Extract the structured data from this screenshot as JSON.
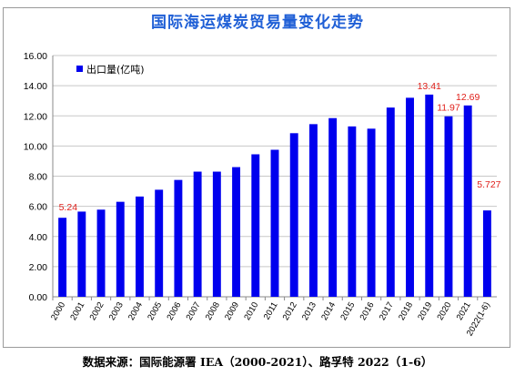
{
  "title": "国际海运煤炭贸易量变化走势",
  "source_note": "数据来源：国际能源署 IEA（2000-2021）、路孚特 2022（1-6）",
  "colors": {
    "bar": "#0000ee",
    "label": "#e0201a",
    "title": "#1f5fd6",
    "grid": "#c8c8c8"
  },
  "chart_data": {
    "type": "bar",
    "title": "国际海运煤炭贸易量变化走势",
    "categories": [
      "2000",
      "2001",
      "2002",
      "2003",
      "2004",
      "2005",
      "2006",
      "2007",
      "2008",
      "2009",
      "2010",
      "2011",
      "2012",
      "2013",
      "2014",
      "2015",
      "2016",
      "2017",
      "2018",
      "2019",
      "2020",
      "2021",
      "2022(1-6)"
    ],
    "series": [
      {
        "name": "出口量(亿吨)",
        "values": [
          5.24,
          5.65,
          5.78,
          6.3,
          6.65,
          7.1,
          7.75,
          8.3,
          8.3,
          8.6,
          9.45,
          9.75,
          10.85,
          11.45,
          11.85,
          11.3,
          11.15,
          12.55,
          13.2,
          13.41,
          11.97,
          12.69,
          5.727
        ]
      }
    ],
    "data_labels": [
      {
        "index": 0,
        "text": "5.24"
      },
      {
        "index": 19,
        "text": "13.41"
      },
      {
        "index": 20,
        "text": "11.97"
      },
      {
        "index": 21,
        "text": "12.69"
      },
      {
        "index": 22,
        "text": "5.727"
      }
    ],
    "y_ticks": [
      "0.00",
      "2.00",
      "4.00",
      "6.00",
      "8.00",
      "10.00",
      "12.00",
      "14.00",
      "16.00"
    ],
    "ylim": [
      0,
      16
    ],
    "grid": true,
    "legend_position": "top-left"
  }
}
